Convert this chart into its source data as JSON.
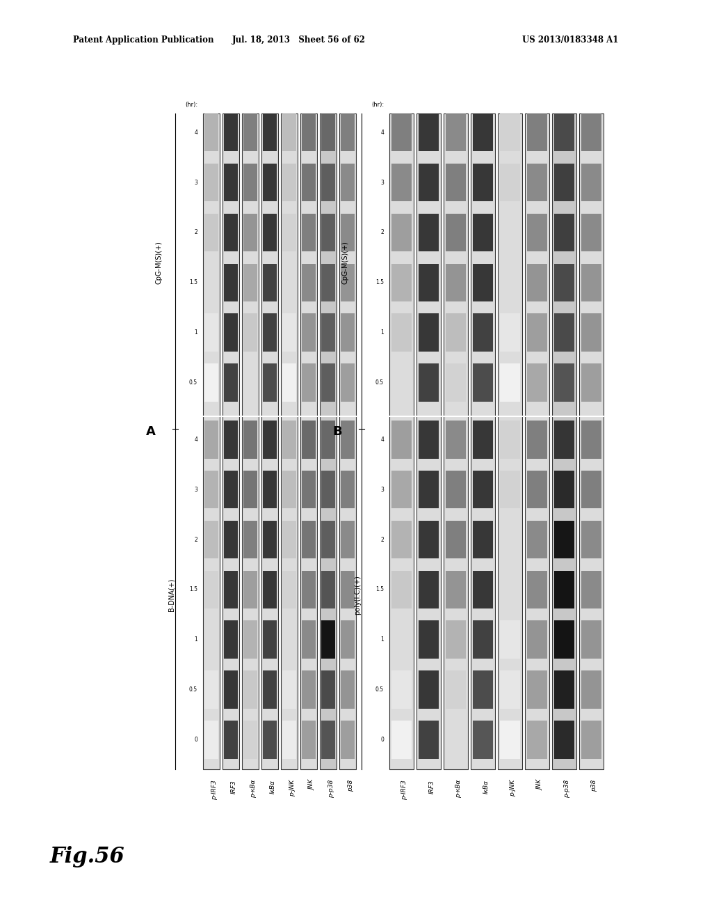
{
  "header_left": "Patent Application Publication",
  "header_mid": "Jul. 18, 2013   Sheet 56 of 62",
  "header_right": "US 2013/0183348 A1",
  "figure_label": "Fig.56",
  "panel_A_label": "A",
  "panel_B_label": "B",
  "panel_A_cond1_label": "B-DNA(+)",
  "panel_A_cond2_label": "CpG-M(S)(+)",
  "panel_B_cond1_label": "poly(I:C)(+)",
  "panel_B_cond2_label": "CpG-M(S)(+)",
  "time_label": "(hr):",
  "time_points_cond1": [
    "0",
    "0.5",
    "1",
    "1.5",
    "2",
    "3",
    "4"
  ],
  "time_points_cond2": [
    "0.5",
    "1",
    "1.5",
    "2",
    "3",
    "4"
  ],
  "row_labels": [
    "p-IRF3",
    "IRF3",
    "p-κBα",
    "IκBα",
    "p-JNK",
    "JNK",
    "p-p38",
    "p38"
  ],
  "bg_color": "#ffffff"
}
